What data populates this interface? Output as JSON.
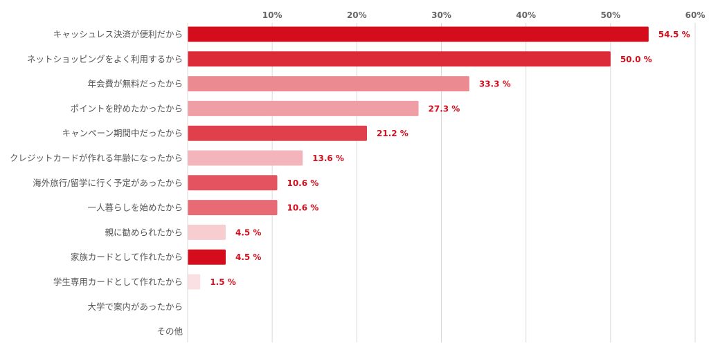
{
  "chart_data": {
    "type": "bar",
    "orientation": "horizontal",
    "title": "",
    "xlabel": "",
    "ylabel": "",
    "xlim": [
      0,
      60
    ],
    "ticks": [
      {
        "value": 10,
        "label": "10%"
      },
      {
        "value": 20,
        "label": "20%"
      },
      {
        "value": 30,
        "label": "30%"
      },
      {
        "value": 40,
        "label": "40%"
      },
      {
        "value": 50,
        "label": "50%"
      },
      {
        "value": 60,
        "label": "60%"
      }
    ],
    "tick_position": "top",
    "grid": true,
    "legend": false,
    "value_suffix": " %",
    "bars": [
      {
        "category": "キャッシュレス決済が便利だから",
        "value": 54.5,
        "label": "54.5 %",
        "color": "#d50c1c"
      },
      {
        "category": "ネットショッピングをよく利用するから",
        "value": 50.0,
        "label": "50.0 %",
        "color": "#dc2a38"
      },
      {
        "category": "年会費が無料だったから",
        "value": 33.3,
        "label": "33.3 %",
        "color": "#ec8a92"
      },
      {
        "category": "ポイントを貯めたかったから",
        "value": 27.3,
        "label": "27.3 %",
        "color": "#ee9ea4"
      },
      {
        "category": "キャンペーン期間中だったから",
        "value": 21.2,
        "label": "21.2 %",
        "color": "#e0404c"
      },
      {
        "category": "クレジットカードが作れる年齢になったから",
        "value": 13.6,
        "label": "13.6 %",
        "color": "#f3b5b9"
      },
      {
        "category": "海外旅行/留学に行く予定があったから",
        "value": 10.6,
        "label": "10.6 %",
        "color": "#e35460"
      },
      {
        "category": "一人暮らしを始めたから",
        "value": 10.6,
        "label": "10.6 %",
        "color": "#e86a74"
      },
      {
        "category": "親に勧められたから",
        "value": 4.5,
        "label": "4.5 %",
        "color": "#f7cdd0"
      },
      {
        "category": "家族カードとして作れたから",
        "value": 4.5,
        "label": "4.5 %",
        "color": "#d50c1c"
      },
      {
        "category": "学生専用カードとして作れたから",
        "value": 1.5,
        "label": "1.5 %",
        "color": "#fae0e2"
      },
      {
        "category": "大学で案内があったから",
        "value": 0,
        "label": "",
        "color": "#d50c1c"
      },
      {
        "category": "その他",
        "value": 0,
        "label": "",
        "color": "#d50c1c"
      }
    ]
  },
  "colors": {
    "value_label": "#d0101e",
    "gridline": "#d9d9d9",
    "axis": "#d9d9d9",
    "tick_label": "#666666",
    "category_label": "#555555"
  }
}
